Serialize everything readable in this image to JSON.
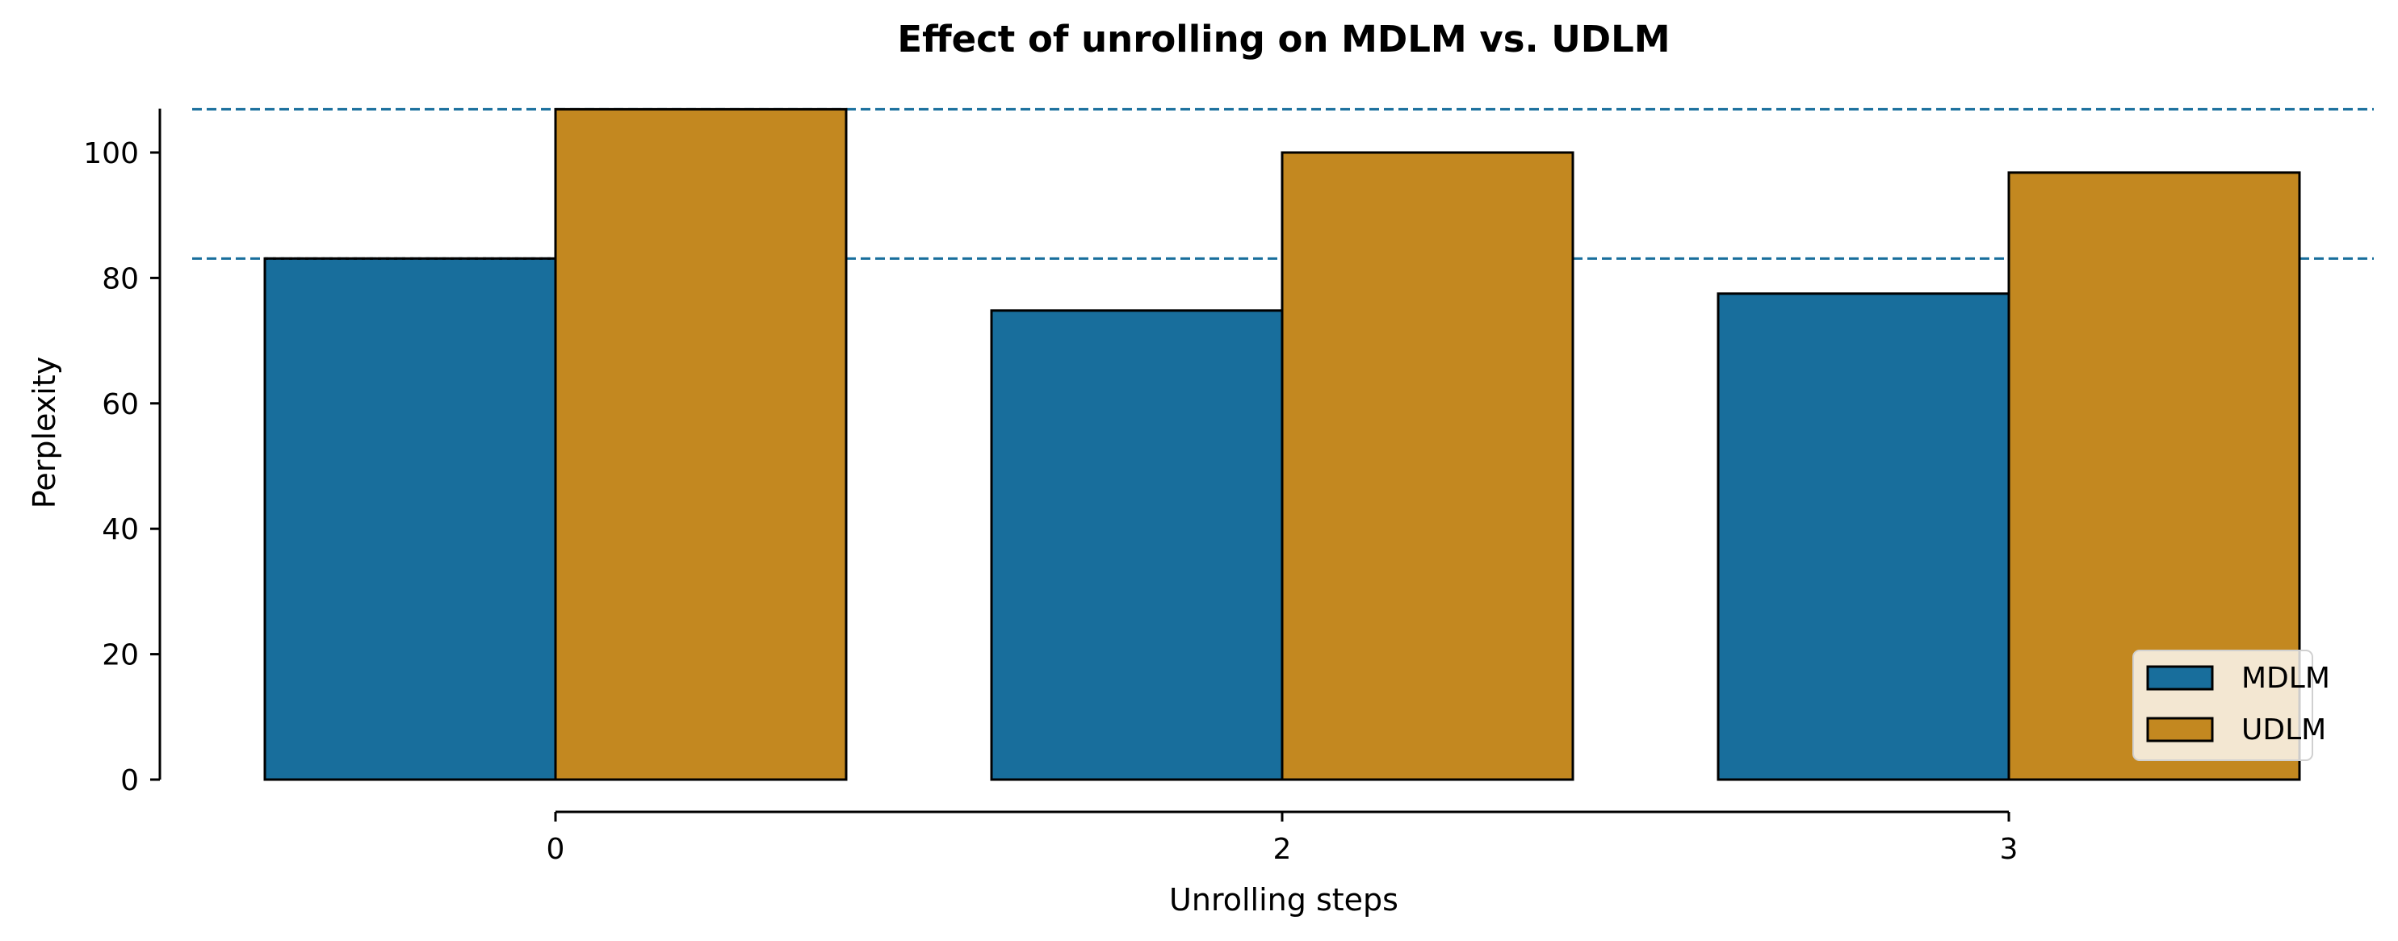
{
  "chart_data": {
    "type": "bar",
    "title": "Effect of unrolling on MDLM vs. UDLM",
    "xlabel": "Unrolling steps",
    "ylabel": "Perplexity",
    "categories": [
      "0",
      "2",
      "3"
    ],
    "series": [
      {
        "name": "MDLM",
        "values": [
          83.1,
          74.8,
          77.5
        ],
        "color": "#186e9c"
      },
      {
        "name": "UDLM",
        "values": [
          106.9,
          100.0,
          96.8
        ],
        "color": "#c38820"
      }
    ],
    "ylim": [
      0,
      107
    ],
    "yticks": [
      0,
      20,
      40,
      60,
      80,
      100
    ],
    "reference_lines": [
      {
        "y": 106.9,
        "style": "dashed",
        "color": "#186e9c"
      },
      {
        "y": 83.1,
        "style": "dashed",
        "color": "#186e9c"
      }
    ],
    "grid": false,
    "legend_position": "lower-right",
    "bar_edge_color": "#000000"
  }
}
